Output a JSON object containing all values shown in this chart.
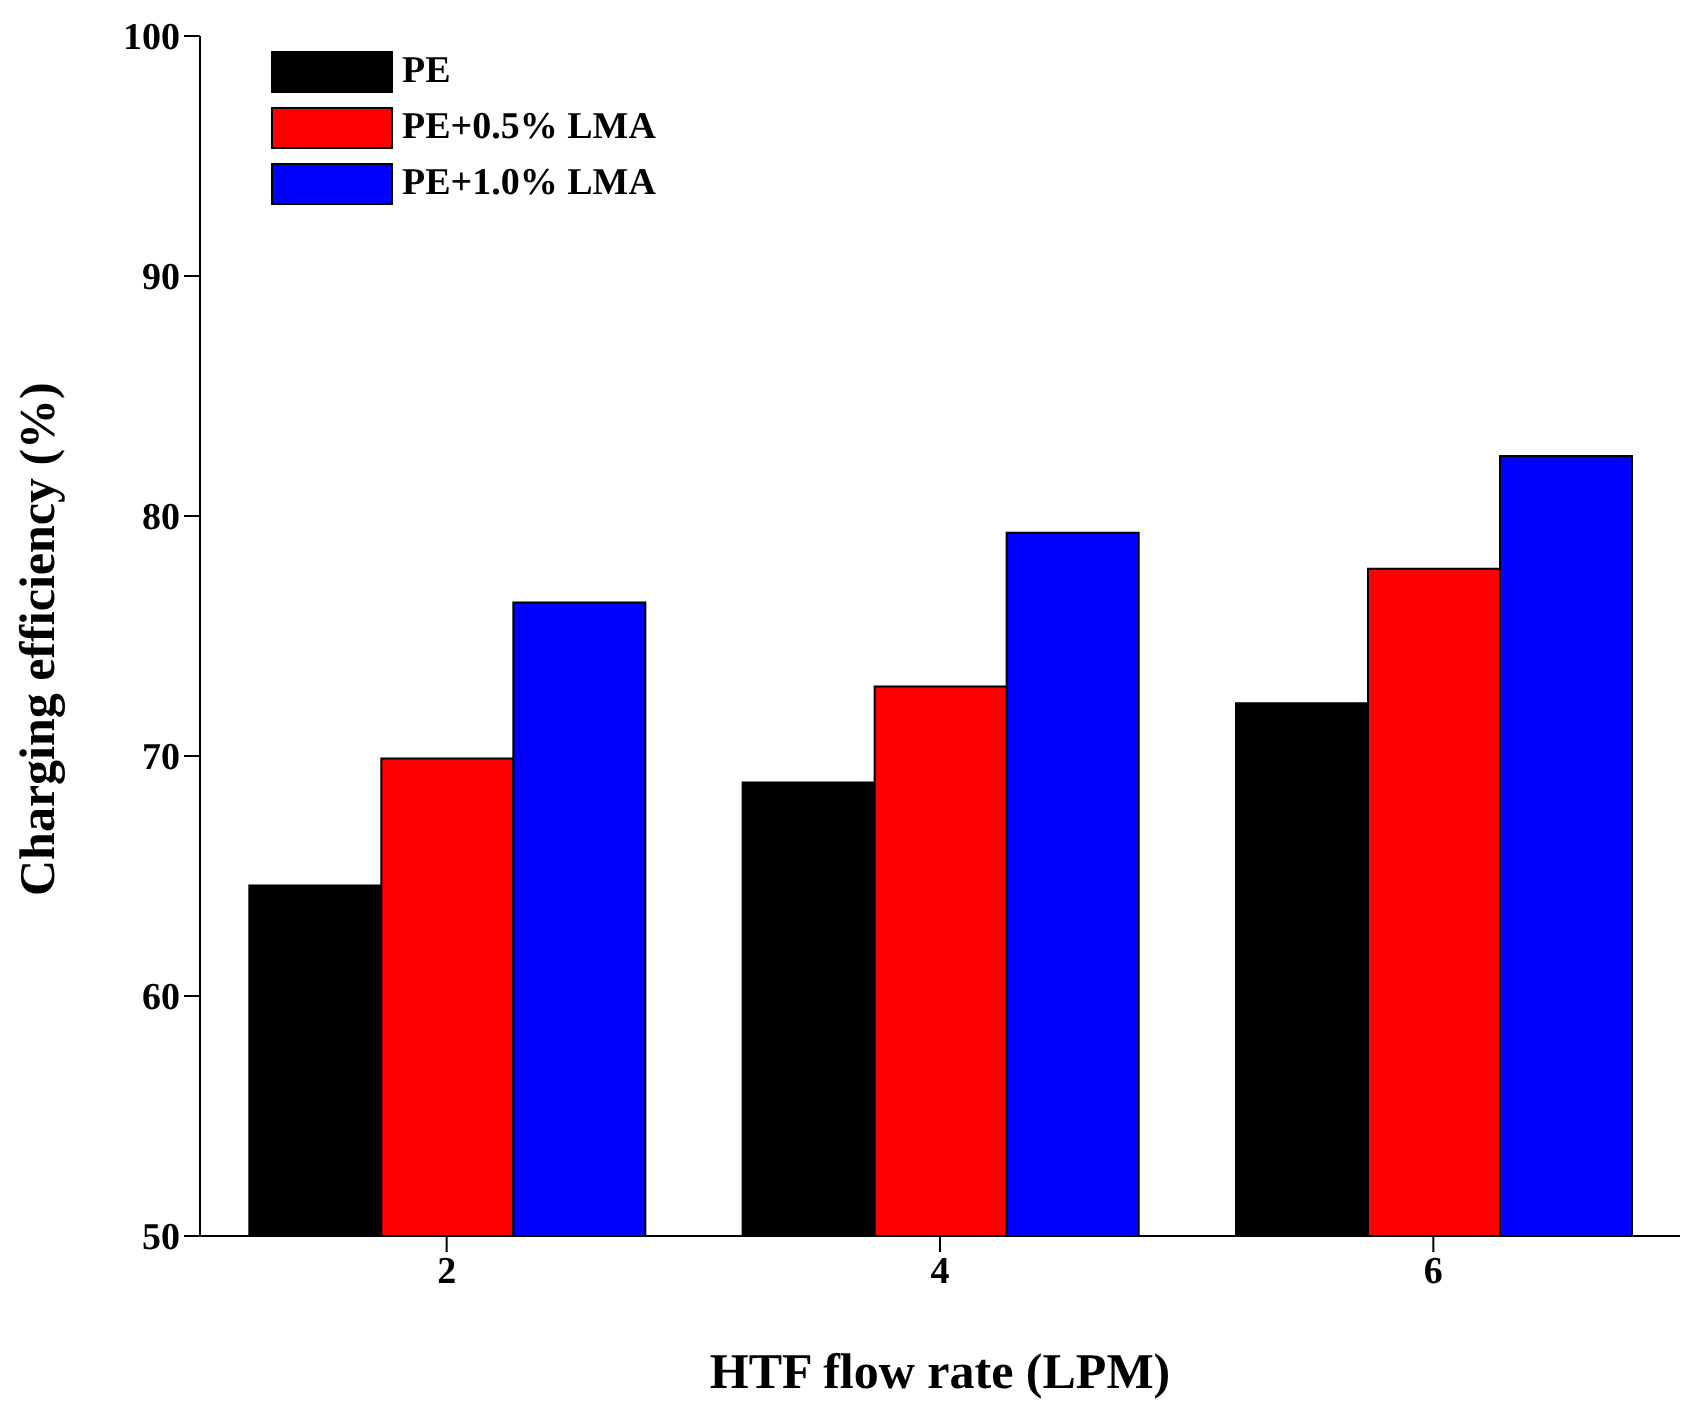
{
  "chart_data": {
    "type": "bar",
    "xlabel": "HTF flow rate (LPM)",
    "ylabel": "Charging efficiency (%)",
    "categories": [
      "2",
      "4",
      "6"
    ],
    "series": [
      {
        "name": "PE",
        "color": "#000000",
        "values": [
          64.6,
          68.9,
          72.2
        ]
      },
      {
        "name": "PE+0.5% LMA",
        "color": "#ff0000",
        "values": [
          69.9,
          72.9,
          77.8
        ]
      },
      {
        "name": "PE+1.0% LMA",
        "color": "#0000ff",
        "values": [
          76.4,
          79.3,
          82.5
        ]
      }
    ],
    "ylim": [
      50,
      100
    ],
    "yticks": [
      50,
      60,
      70,
      80,
      90,
      100
    ],
    "grid": false,
    "legend": "top left"
  }
}
